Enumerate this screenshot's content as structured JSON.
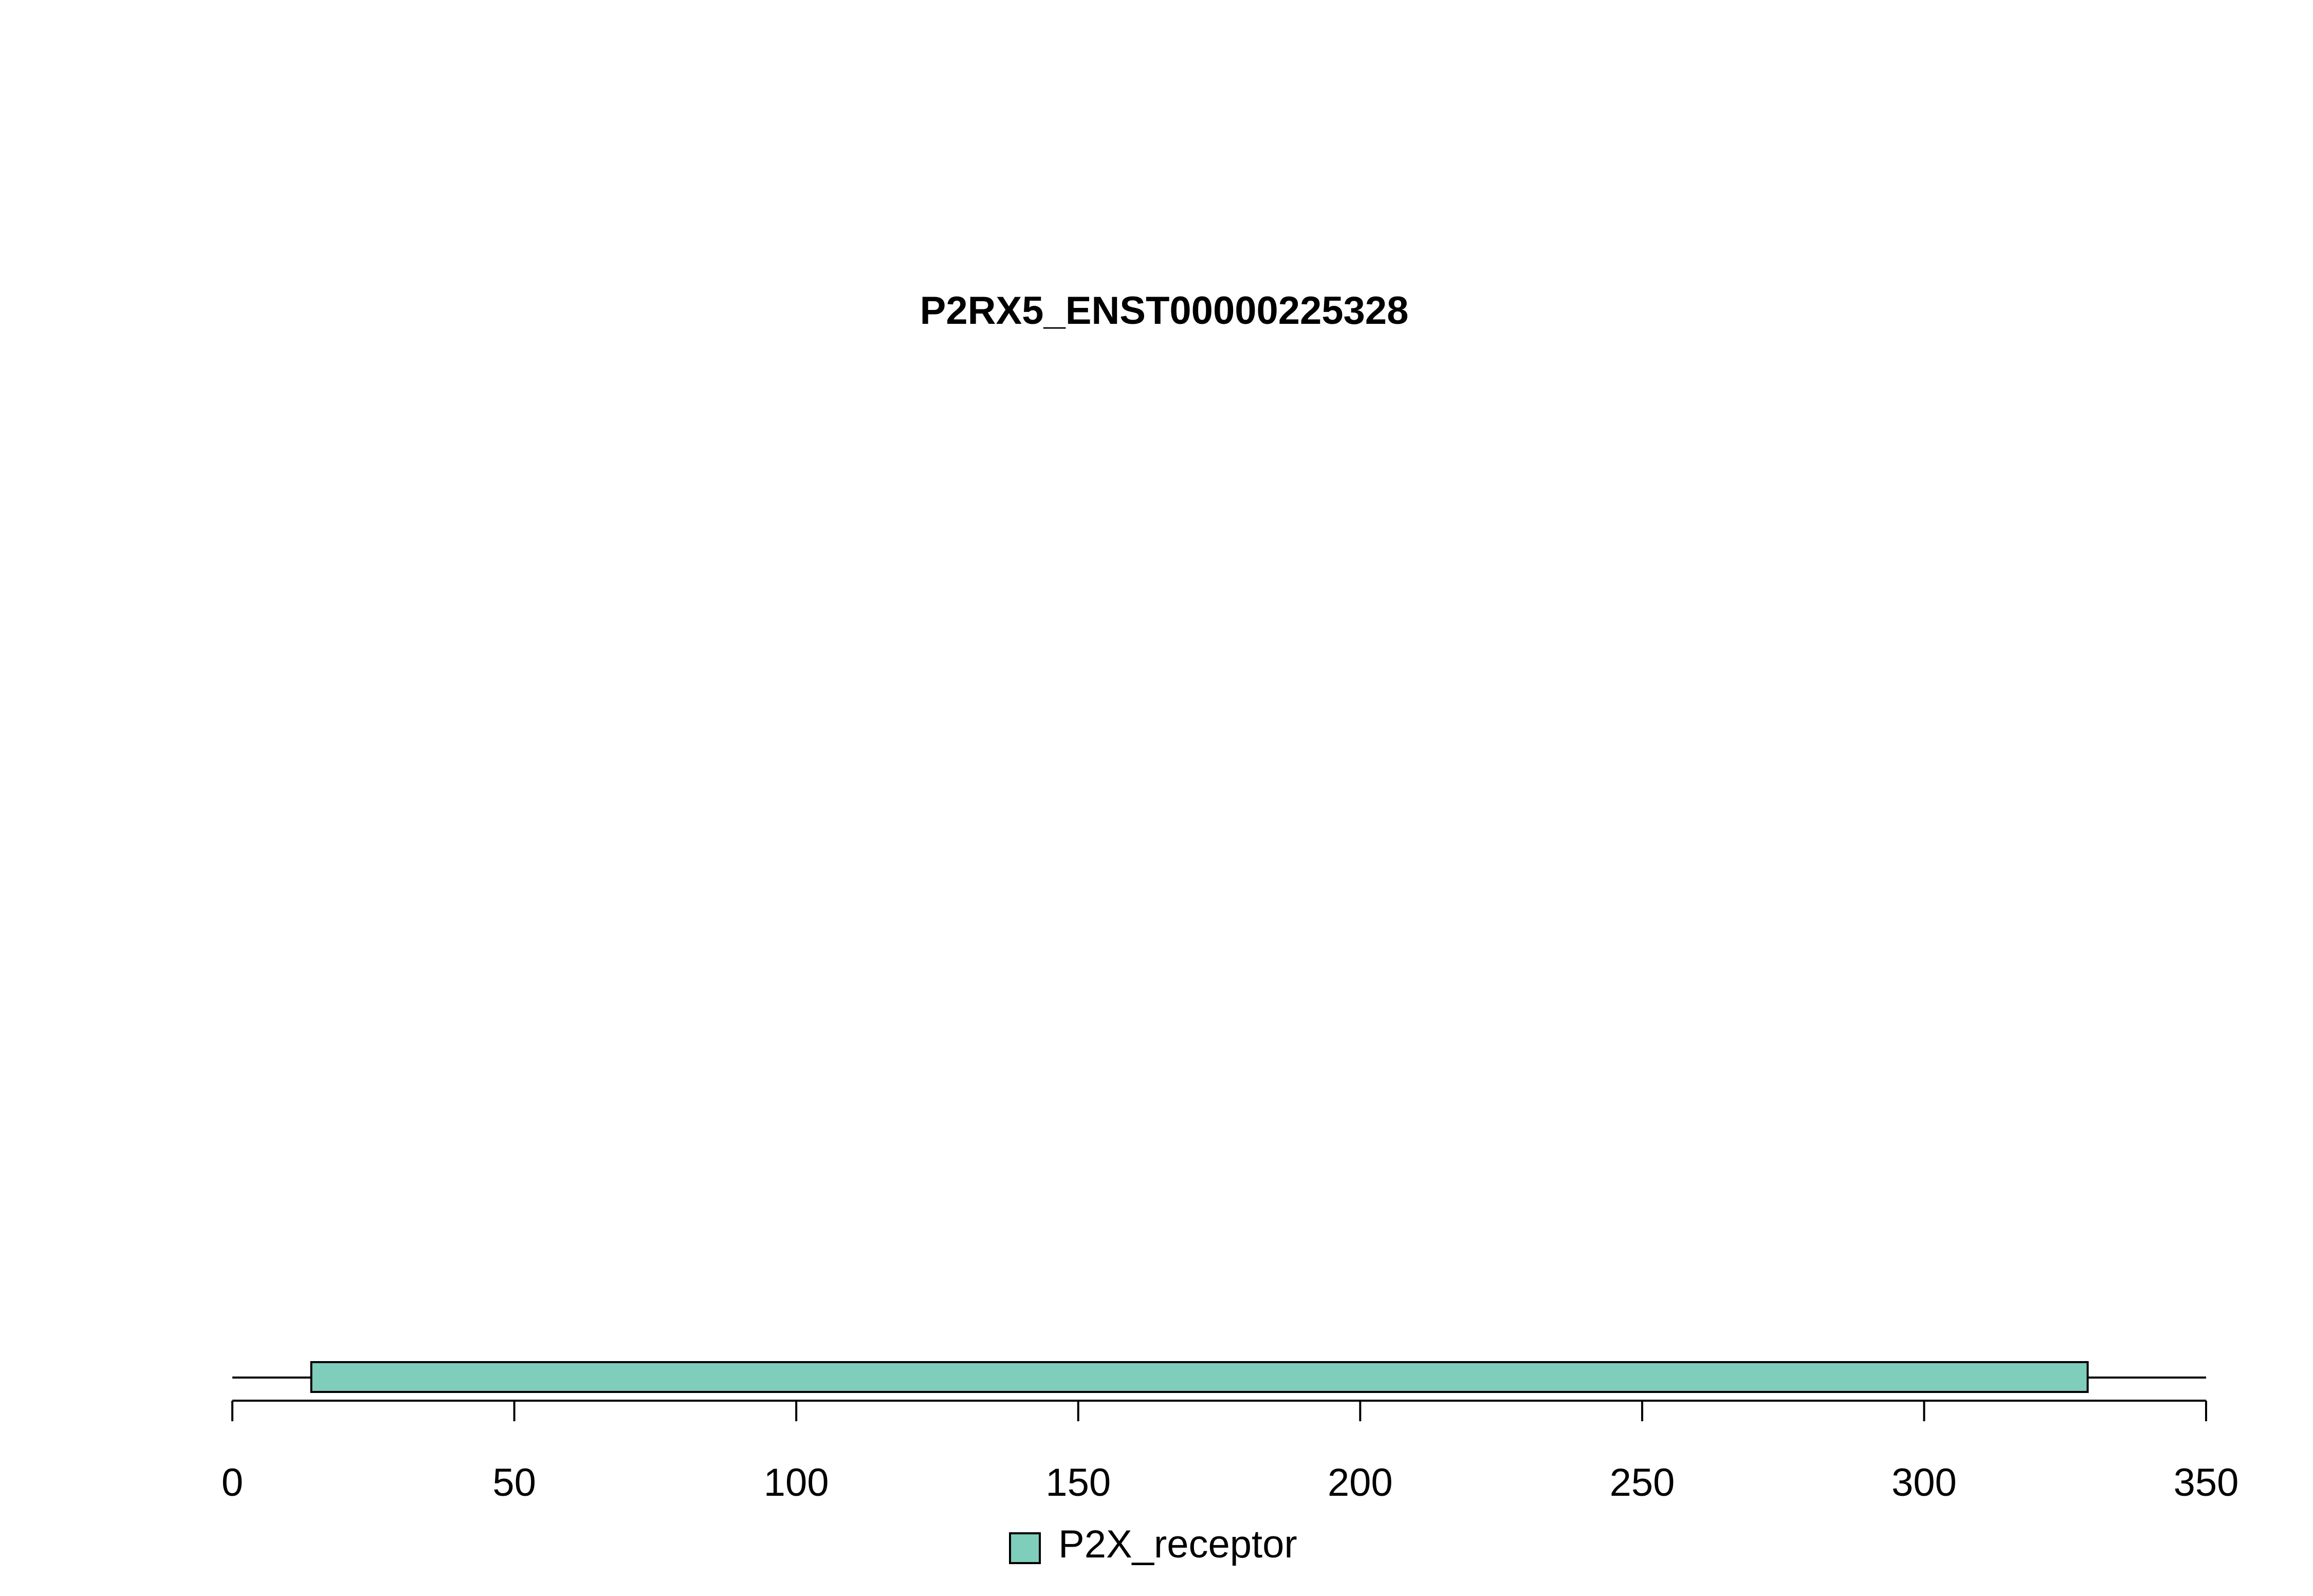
{
  "chart_data": {
    "type": "protein-domain-track",
    "title": "P2RX5_ENST00000225328",
    "protein_length": 350,
    "xlim": [
      0,
      350
    ],
    "x_ticks": [
      0,
      50,
      100,
      150,
      200,
      250,
      300,
      350
    ],
    "x_tick_labels": [
      "0",
      "50",
      "100",
      "150",
      "200",
      "250",
      "300",
      "350"
    ],
    "domains": [
      {
        "name": "P2X_receptor",
        "start": 14,
        "end": 329,
        "color": "#7fcdbb"
      }
    ],
    "legend": {
      "placement": "bottom-center",
      "entries": [
        {
          "label": "P2X_receptor",
          "color": "#7fcdbb"
        }
      ]
    },
    "grid": false
  }
}
